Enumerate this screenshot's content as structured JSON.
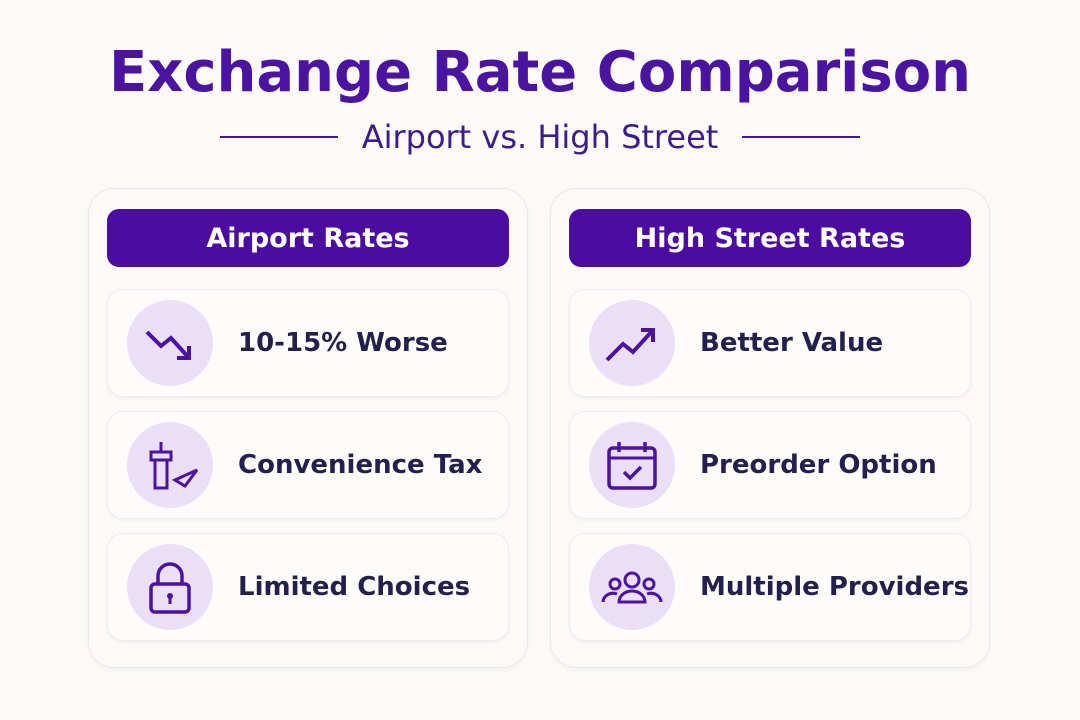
{
  "header": {
    "title": "Exchange Rate Comparison",
    "subtitle": "Airport vs. High Street"
  },
  "columns": [
    {
      "heading": "Airport Rates",
      "items": [
        {
          "label": "10-15% Worse"
        },
        {
          "label": "Convenience Tax"
        },
        {
          "label": "Limited Choices"
        }
      ]
    },
    {
      "heading": "High Street Rates",
      "items": [
        {
          "label": "Better Value"
        },
        {
          "label": "Preorder Option"
        },
        {
          "label": "Multiple Providers"
        }
      ]
    }
  ]
}
